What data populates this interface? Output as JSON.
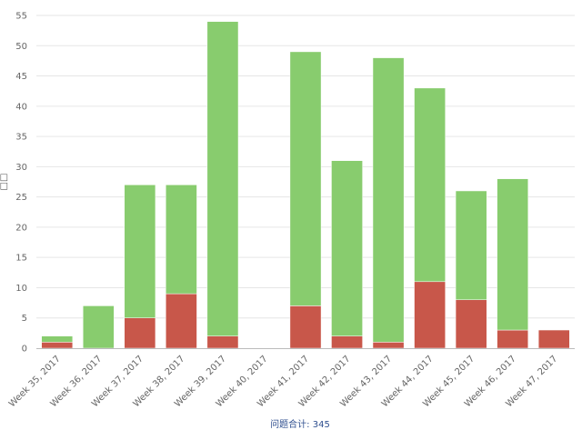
{
  "chart_data": {
    "type": "bar",
    "stacked": true,
    "categories": [
      "Week 35, 2017",
      "Week 36, 2017",
      "Week 37, 2017",
      "Week 38, 2017",
      "Week 39, 2017",
      "Week 40, 2017",
      "Week 41, 2017",
      "Week 42, 2017",
      "Week 43, 2017",
      "Week 44, 2017",
      "Week 45, 2017",
      "Week 46, 2017",
      "Week 47, 2017"
    ],
    "series": [
      {
        "values": [
          1,
          0,
          5,
          9,
          2,
          0,
          7,
          2,
          1,
          11,
          8,
          3,
          3
        ],
        "color": "#c8574a"
      },
      {
        "values": [
          1,
          7,
          22,
          18,
          52,
          0,
          42,
          29,
          47,
          32,
          18,
          25,
          0
        ],
        "color": "#88cc6e"
      }
    ],
    "ylabel": "□□",
    "ylim": [
      0,
      55
    ],
    "yticks": [
      0,
      5,
      10,
      15,
      20,
      25,
      30,
      35,
      40,
      45,
      50,
      55
    ],
    "grid": true,
    "legend": "none"
  },
  "footer": {
    "label": "问题合计:",
    "value": "345"
  }
}
